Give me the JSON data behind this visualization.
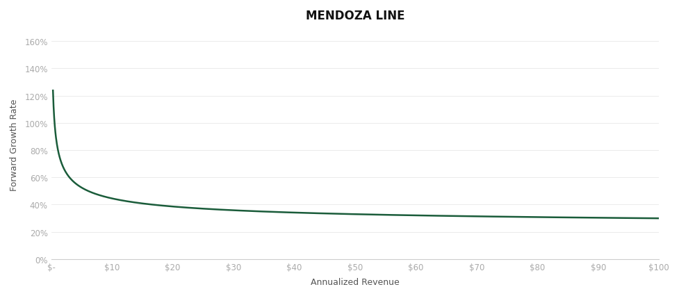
{
  "title": "MENDOZA LINE",
  "xlabel": "Annualized Revenue",
  "ylabel": "Forward Growth Rate",
  "line_color": "#1a5c3a",
  "line_width": 1.8,
  "background_color": "#ffffff",
  "x_ticks": [
    0,
    10,
    20,
    30,
    40,
    50,
    60,
    70,
    80,
    90,
    100
  ],
  "x_tick_labels": [
    "$-",
    "$10",
    "$20",
    "$30",
    "$40",
    "$50",
    "$60",
    "$70",
    "$80",
    "$90",
    "$100"
  ],
  "y_ticks": [
    0.0,
    0.2,
    0.4,
    0.6,
    0.8,
    1.0,
    1.2,
    1.4,
    1.6
  ],
  "y_tick_labels": [
    "0%",
    "20%",
    "40%",
    "60%",
    "80%",
    "100%",
    "120%",
    "140%",
    "160%"
  ],
  "ylim": [
    0,
    1.68
  ],
  "xlim": [
    0,
    100
  ],
  "curve_a": 0.62,
  "curve_b": 0.42,
  "curve_c": 0.21,
  "title_fontsize": 12,
  "label_fontsize": 9,
  "tick_fontsize": 8.5,
  "tick_color": "#aaaaaa",
  "spine_color": "#cccccc",
  "grid_color": "#e8e8e8"
}
